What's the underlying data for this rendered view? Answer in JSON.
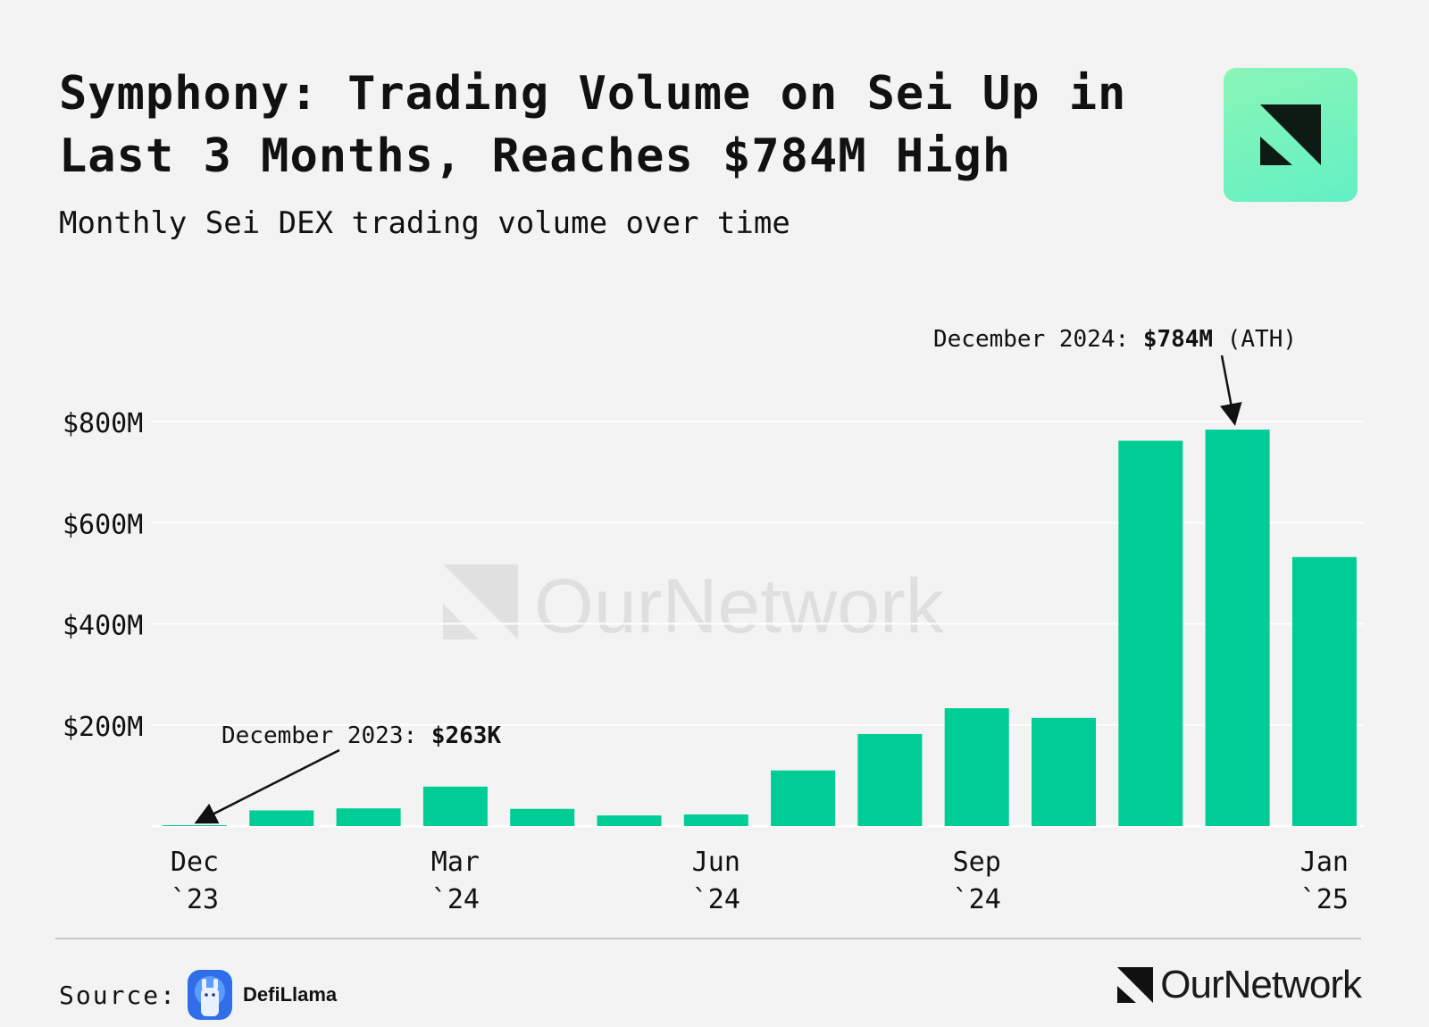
{
  "header": {
    "title": "Symphony: Trading Volume on Sei Up in Last 3 Months, Reaches $784M High",
    "subtitle": "Monthly Sei DEX trading volume over time"
  },
  "colors": {
    "bar": "#00cc96",
    "background": "#f3f3f3",
    "grid": "#ffffff",
    "text": "#111111",
    "watermark": "#d9d9d9"
  },
  "chart_data": {
    "type": "bar",
    "title": "Monthly Sei DEX trading volume over time",
    "xlabel": "",
    "ylabel": "",
    "ylim": [
      0,
      800
    ],
    "unit": "$M",
    "y_ticks": [
      {
        "value": 200,
        "label": "$200M"
      },
      {
        "value": 400,
        "label": "$400M"
      },
      {
        "value": 600,
        "label": "$600M"
      },
      {
        "value": 800,
        "label": "$800M"
      }
    ],
    "categories": [
      "Dec 2023",
      "Jan 2024",
      "Feb 2024",
      "Mar 2024",
      "Apr 2024",
      "May 2024",
      "Jun 2024",
      "Jul 2024",
      "Aug 2024",
      "Sep 2024",
      "Oct 2024",
      "Nov 2024",
      "Dec 2024",
      "Jan 2025"
    ],
    "values": [
      0.263,
      31,
      35,
      78,
      34,
      21,
      23,
      110,
      182,
      233,
      214,
      762,
      784,
      532
    ],
    "x_ticks": [
      {
        "index": 0,
        "month": "Dec",
        "year": "`23"
      },
      {
        "index": 3,
        "month": "Mar",
        "year": "`24"
      },
      {
        "index": 6,
        "month": "Jun",
        "year": "`24"
      },
      {
        "index": 9,
        "month": "Sep",
        "year": "`24"
      },
      {
        "index": 13,
        "month": "Jan",
        "year": "`25"
      }
    ],
    "annotations": [
      {
        "index": 12,
        "prefix": "December 2024: ",
        "value": "$784M",
        "suffix": " (ATH)"
      },
      {
        "index": 0,
        "prefix": "December 2023: ",
        "value": "$263K",
        "suffix": ""
      }
    ],
    "grid": true,
    "watermark": "OurNetwork"
  },
  "footer": {
    "source_label": "Source:",
    "source_name": "DefiLlama",
    "brand_name": "OurNetwork"
  }
}
